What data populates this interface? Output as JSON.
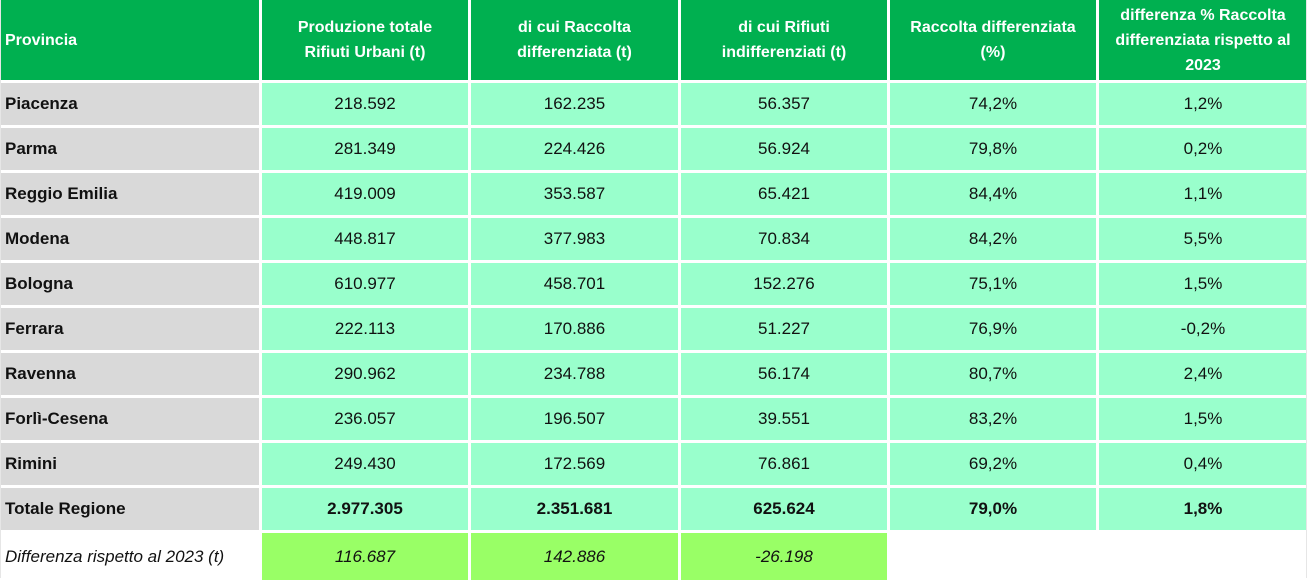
{
  "header": {
    "provincia": "Provincia",
    "col1": [
      "Produzione totale",
      "Rifiuti Urbani (t)"
    ],
    "col2": [
      "di cui Raccolta",
      "differenziata (t)"
    ],
    "col3": [
      "di cui Rifiuti",
      "indifferenziati (t)"
    ],
    "col4": [
      "Raccolta differenziata",
      "(%)"
    ],
    "col5": [
      "differenza % Raccolta",
      "differenziata rispetto al",
      "2023"
    ]
  },
  "rows": [
    {
      "provincia": "Piacenza",
      "totale": "218.592",
      "differenziata": "162.235",
      "indifferenziati": "56.357",
      "percent": "74,2%",
      "diff": "1,2%"
    },
    {
      "provincia": "Parma",
      "totale": "281.349",
      "differenziata": "224.426",
      "indifferenziati": "56.924",
      "percent": "79,8%",
      "diff": "0,2%"
    },
    {
      "provincia": "Reggio Emilia",
      "totale": "419.009",
      "differenziata": "353.587",
      "indifferenziati": "65.421",
      "percent": "84,4%",
      "diff": "1,1%"
    },
    {
      "provincia": "Modena",
      "totale": "448.817",
      "differenziata": "377.983",
      "indifferenziati": "70.834",
      "percent": "84,2%",
      "diff": "5,5%"
    },
    {
      "provincia": "Bologna",
      "totale": "610.977",
      "differenziata": "458.701",
      "indifferenziati": "152.276",
      "percent": "75,1%",
      "diff": "1,5%"
    },
    {
      "provincia": "Ferrara",
      "totale": "222.113",
      "differenziata": "170.886",
      "indifferenziati": "51.227",
      "percent": "76,9%",
      "diff": "-0,2%"
    },
    {
      "provincia": "Ravenna",
      "totale": "290.962",
      "differenziata": "234.788",
      "indifferenziati": "56.174",
      "percent": "80,7%",
      "diff": "2,4%"
    },
    {
      "provincia": "Forlì-Cesena",
      "totale": "236.057",
      "differenziata": "196.507",
      "indifferenziati": "39.551",
      "percent": "83,2%",
      "diff": "1,5%"
    },
    {
      "provincia": "Rimini",
      "totale": "249.430",
      "differenziata": "172.569",
      "indifferenziati": "76.861",
      "percent": "69,2%",
      "diff": "0,4%"
    }
  ],
  "total": {
    "provincia": "Totale Regione",
    "totale": "2.977.305",
    "differenziata": "2.351.681",
    "indifferenziati": "625.624",
    "percent": "79,0%",
    "diff": "1,8%"
  },
  "difference": {
    "label": "Differenza rispetto al 2023 (t)",
    "totale": "116.687",
    "differenziata": "142.886",
    "indifferenziati": "-26.198"
  },
  "colors": {
    "header": "#00b050",
    "data": "#99ffcc",
    "name_col": "#d9d9d9",
    "diff_row": "#99ff66"
  }
}
